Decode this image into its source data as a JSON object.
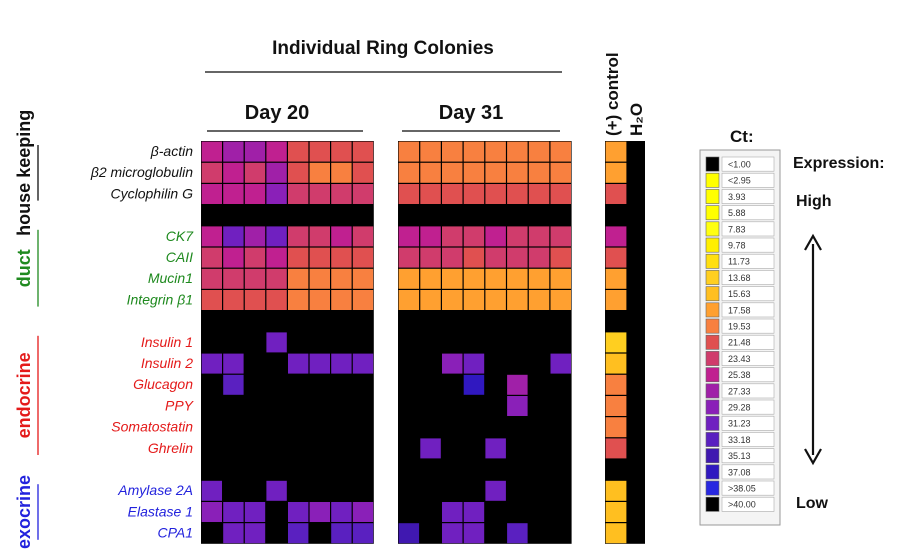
{
  "chart_data": {
    "type": "heatmap",
    "title": "Individual Ring Colonies",
    "column_groups": [
      {
        "label": "Day 20",
        "columns": 8
      },
      {
        "label": "Day 31",
        "columns": 8
      },
      {
        "label": "(+) control",
        "columns": 1
      },
      {
        "label": "H₂O",
        "columns": 1
      }
    ],
    "row_groups": [
      {
        "label": "house keeping",
        "color": "#111111",
        "genes": [
          "β-actin",
          "β2 microglobulin",
          "Cyclophilin G"
        ]
      },
      {
        "label": "duct",
        "color": "#1f8a1f",
        "genes": [
          "CK7",
          "CAII",
          "Mucin1",
          "Integrin β1"
        ]
      },
      {
        "label": "endocrine",
        "color": "#e41a1a",
        "genes": [
          "Insulin 1",
          "Insulin 2",
          "Glucagon",
          "PPY",
          "Somatostatin",
          "Ghrelin"
        ]
      },
      {
        "label": "exocrine",
        "color": "#2222dd",
        "genes": [
          "Amylase 2A",
          "Elastase 1",
          "CPA1"
        ]
      }
    ],
    "legend": {
      "title": "Ct:",
      "bins": [
        "<1.00",
        "<2.95",
        "3.93",
        "5.88",
        "7.83",
        "9.78",
        "11.73",
        "13.68",
        "15.63",
        "17.58",
        "19.53",
        "21.48",
        "23.43",
        "25.38",
        "27.33",
        "29.28",
        "31.23",
        "33.18",
        "35.13",
        "37.08",
        ">38.05",
        ">40.00"
      ],
      "colors": [
        "#000000",
        "#ffff00",
        "#ffff00",
        "#ffff00",
        "#ffff10",
        "#ffef00",
        "#ffdf10",
        "#ffcf20",
        "#ffbf20",
        "#ffa030",
        "#f88040",
        "#e05050",
        "#d03c6c",
        "#c02090",
        "#a020a8",
        "#8a20b8",
        "#7020c0",
        "#5a20c0",
        "#4018b0",
        "#3018c0",
        "#2828e0",
        "#000000"
      ],
      "expression_label": "Expression:",
      "high_label": "High",
      "low_label": "Low"
    },
    "matrix": [
      [
        13,
        14,
        14,
        13,
        11,
        11,
        11,
        11,
        10,
        10,
        10,
        10,
        10,
        10,
        10,
        10,
        9,
        21
      ],
      [
        12,
        13,
        12,
        14,
        11,
        10,
        10,
        11,
        10,
        10,
        10,
        10,
        10,
        10,
        10,
        10,
        9,
        21
      ],
      [
        13,
        13,
        13,
        15,
        12,
        12,
        12,
        12,
        11,
        11,
        11,
        11,
        11,
        11,
        11,
        11,
        11,
        21
      ],
      [
        21,
        21,
        21,
        21,
        21,
        21,
        21,
        21,
        21,
        21,
        21,
        21,
        21,
        21,
        21,
        21,
        21,
        21
      ],
      [
        13,
        16,
        14,
        16,
        12,
        12,
        13,
        12,
        13,
        13,
        12,
        12,
        13,
        12,
        12,
        12,
        13,
        21
      ],
      [
        12,
        13,
        12,
        13,
        11,
        11,
        11,
        11,
        12,
        12,
        12,
        11,
        12,
        12,
        12,
        11,
        11,
        21
      ],
      [
        12,
        12,
        12,
        12,
        10,
        10,
        10,
        10,
        9,
        9,
        9,
        9,
        9,
        9,
        9,
        9,
        9,
        21
      ],
      [
        11,
        11,
        11,
        11,
        10,
        10,
        10,
        10,
        9,
        9,
        9,
        9,
        9,
        9,
        9,
        9,
        9,
        21
      ],
      [
        21,
        21,
        21,
        21,
        21,
        21,
        21,
        21,
        21,
        21,
        21,
        21,
        21,
        21,
        21,
        21,
        21,
        21
      ],
      [
        21,
        21,
        21,
        16,
        21,
        21,
        21,
        21,
        21,
        21,
        21,
        21,
        21,
        21,
        21,
        21,
        7,
        21
      ],
      [
        16,
        16,
        21,
        21,
        16,
        16,
        16,
        16,
        21,
        21,
        15,
        16,
        21,
        21,
        21,
        16,
        8,
        21
      ],
      [
        21,
        17,
        21,
        21,
        21,
        21,
        21,
        21,
        21,
        21,
        21,
        19,
        21,
        14,
        21,
        21,
        10,
        21
      ],
      [
        21,
        21,
        21,
        21,
        21,
        21,
        21,
        21,
        21,
        21,
        21,
        21,
        21,
        15,
        21,
        21,
        10,
        21
      ],
      [
        21,
        21,
        21,
        21,
        21,
        21,
        21,
        21,
        21,
        21,
        21,
        21,
        21,
        21,
        21,
        21,
        10,
        21
      ],
      [
        21,
        21,
        21,
        21,
        21,
        21,
        21,
        21,
        21,
        16,
        21,
        21,
        16,
        21,
        21,
        21,
        11,
        21
      ],
      [
        21,
        21,
        21,
        21,
        21,
        21,
        21,
        21,
        21,
        21,
        21,
        21,
        21,
        21,
        21,
        21,
        21,
        21
      ],
      [
        16,
        21,
        21,
        16,
        21,
        21,
        21,
        21,
        21,
        21,
        21,
        21,
        16,
        21,
        21,
        21,
        8,
        21
      ],
      [
        15,
        16,
        16,
        21,
        16,
        15,
        16,
        15,
        21,
        21,
        16,
        16,
        21,
        21,
        21,
        21,
        8,
        21
      ],
      [
        21,
        16,
        16,
        21,
        17,
        21,
        17,
        17,
        18,
        21,
        16,
        16,
        21,
        17,
        21,
        21,
        8,
        21
      ]
    ]
  }
}
